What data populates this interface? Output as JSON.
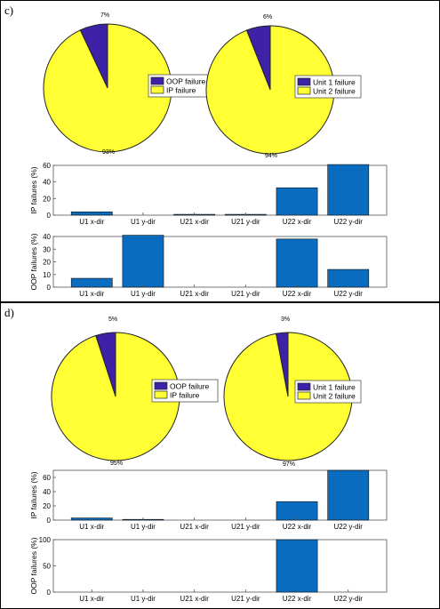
{
  "panels": [
    {
      "label": "c)",
      "pies": [
        {
          "slices": [
            {
              "name": "OOP failure",
              "value": 7,
              "label": "7%",
              "color": "#3d22a8"
            },
            {
              "name": "IP failure",
              "value": 93,
              "label": "93%",
              "color": "#ffff33"
            }
          ]
        },
        {
          "slices": [
            {
              "name": "Unit 1 failure",
              "value": 6,
              "label": "6%",
              "color": "#3d22a8"
            },
            {
              "name": "Unit 2 failure",
              "value": 94,
              "label": "94%",
              "color": "#ffff33"
            }
          ]
        }
      ],
      "bars": [
        {
          "ylabel": "IP failures (%)",
          "ylim": [
            0,
            60
          ],
          "yticks": [
            0,
            20,
            40,
            60
          ],
          "categories": [
            "U1 x-dir",
            "U1 y-dir",
            "U21 x-dir",
            "U21 y-dir",
            "U22 x-dir",
            "U22 y-dir"
          ],
          "values": [
            4,
            0,
            1,
            1,
            33,
            61
          ]
        },
        {
          "ylabel": "OOP failures (%)",
          "ylim": [
            0,
            40
          ],
          "yticks": [
            0,
            10,
            20,
            30,
            40
          ],
          "categories": [
            "U1 x-dir",
            "U1 y-dir",
            "U21 x-dir",
            "U21 y-dir",
            "U22 x-dir",
            "U22 y-dir"
          ],
          "values": [
            7,
            41,
            0,
            0,
            38,
            14
          ]
        }
      ]
    },
    {
      "label": "d)",
      "pies": [
        {
          "slices": [
            {
              "name": "OOP failure",
              "value": 5,
              "label": "5%",
              "color": "#3d22a8"
            },
            {
              "name": "IP failure",
              "value": 95,
              "label": "95%",
              "color": "#ffff33"
            }
          ]
        },
        {
          "slices": [
            {
              "name": "Unit 1 failure",
              "value": 3,
              "label": "3%",
              "color": "#3d22a8"
            },
            {
              "name": "Unit 2 failure",
              "value": 97,
              "label": "97%",
              "color": "#ffff33"
            }
          ]
        }
      ],
      "bars": [
        {
          "ylabel": "IP failures (%)",
          "ylim": [
            0,
            70
          ],
          "yticks": [
            0,
            20,
            40,
            60
          ],
          "categories": [
            "U1 x-dir",
            "U1 y-dir",
            "U21 x-dir",
            "U21 y-dir",
            "U22 x-dir",
            "U22 y-dir"
          ],
          "values": [
            3,
            1,
            0,
            0,
            26,
            70
          ]
        },
        {
          "ylabel": "OOP failures (%)",
          "ylim": [
            0,
            100
          ],
          "yticks": [
            0,
            50,
            100
          ],
          "categories": [
            "U1 x-dir",
            "U1 y-dir",
            "U21 x-dir",
            "U21 y-dir",
            "U22 x-dir",
            "U22 y-dir"
          ],
          "values": [
            0,
            0,
            0,
            0,
            100,
            0
          ]
        }
      ]
    }
  ],
  "bar_color": "#0a6cbf",
  "chart_data": [
    {
      "panel": "c)",
      "type": "pie",
      "labels": [
        "OOP failure",
        "IP failure"
      ],
      "values": [
        7,
        93
      ]
    },
    {
      "panel": "c)",
      "type": "pie",
      "labels": [
        "Unit 1 failure",
        "Unit 2 failure"
      ],
      "values": [
        6,
        94
      ]
    },
    {
      "panel": "c)",
      "type": "bar",
      "categories": [
        "U1 x-dir",
        "U1 y-dir",
        "U21 x-dir",
        "U21 y-dir",
        "U22 x-dir",
        "U22 y-dir"
      ],
      "values": [
        4,
        0,
        1,
        1,
        33,
        61
      ],
      "ylabel": "IP failures (%)",
      "ylim": [
        0,
        60
      ]
    },
    {
      "panel": "c)",
      "type": "bar",
      "categories": [
        "U1 x-dir",
        "U1 y-dir",
        "U21 x-dir",
        "U21 y-dir",
        "U22 x-dir",
        "U22 y-dir"
      ],
      "values": [
        7,
        41,
        0,
        0,
        38,
        14
      ],
      "ylabel": "OOP failures (%)",
      "ylim": [
        0,
        40
      ]
    },
    {
      "panel": "d)",
      "type": "pie",
      "labels": [
        "OOP failure",
        "IP failure"
      ],
      "values": [
        5,
        95
      ]
    },
    {
      "panel": "d)",
      "type": "pie",
      "labels": [
        "Unit 1 failure",
        "Unit 2 failure"
      ],
      "values": [
        3,
        97
      ]
    },
    {
      "panel": "d)",
      "type": "bar",
      "categories": [
        "U1 x-dir",
        "U1 y-dir",
        "U21 x-dir",
        "U21 y-dir",
        "U22 x-dir",
        "U22 y-dir"
      ],
      "values": [
        3,
        1,
        0,
        0,
        26,
        70
      ],
      "ylabel": "IP failures (%)",
      "ylim": [
        0,
        70
      ]
    },
    {
      "panel": "d)",
      "type": "bar",
      "categories": [
        "U1 x-dir",
        "U1 y-dir",
        "U21 x-dir",
        "U21 y-dir",
        "U22 x-dir",
        "U22 y-dir"
      ],
      "values": [
        0,
        0,
        0,
        0,
        100,
        0
      ],
      "ylabel": "OOP failures (%)",
      "ylim": [
        0,
        100
      ]
    }
  ]
}
